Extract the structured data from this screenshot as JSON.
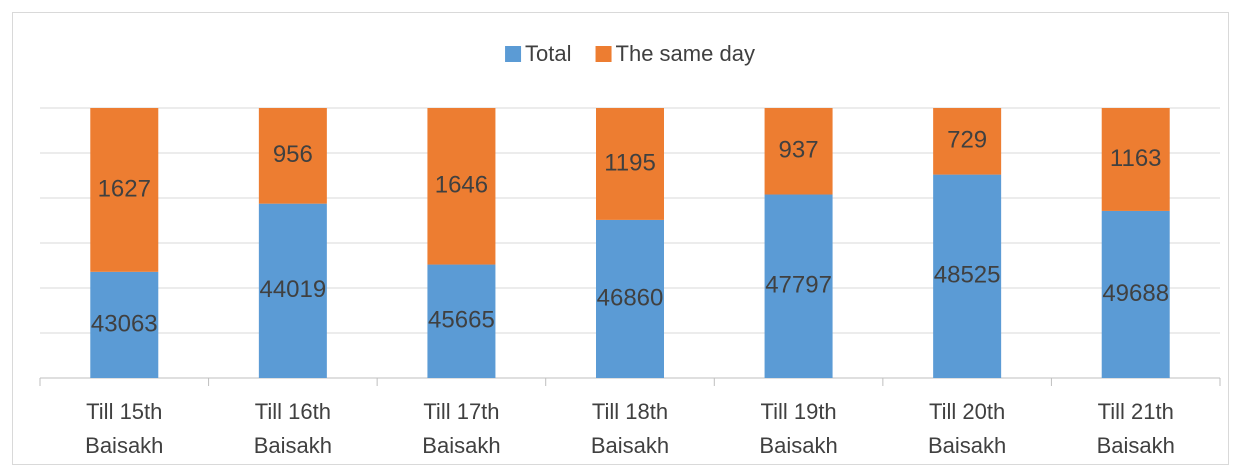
{
  "chart_data": {
    "type": "bar_percent_stacked",
    "categories": [
      "Till 15th Baisakh",
      "Till 16th Baisakh",
      "Till 17th Baisakh",
      "Till 18th Baisakh",
      "Till 19th Baisakh",
      "Till 20th Baisakh",
      "Till 21th Baisakh"
    ],
    "series": [
      {
        "name": "Total",
        "color": "#5b9bd5",
        "values": [
          43063,
          44019,
          45665,
          46860,
          47797,
          48525,
          49688
        ]
      },
      {
        "name": "The same day",
        "color": "#ed7d31",
        "values": [
          1627,
          956,
          1646,
          1195,
          937,
          729,
          1163
        ]
      }
    ],
    "ylim": [
      94,
      100
    ],
    "yticks": [
      94,
      95,
      96,
      97,
      98,
      99,
      100
    ],
    "show_ytick_labels": false,
    "grid": true,
    "legend": "top"
  }
}
